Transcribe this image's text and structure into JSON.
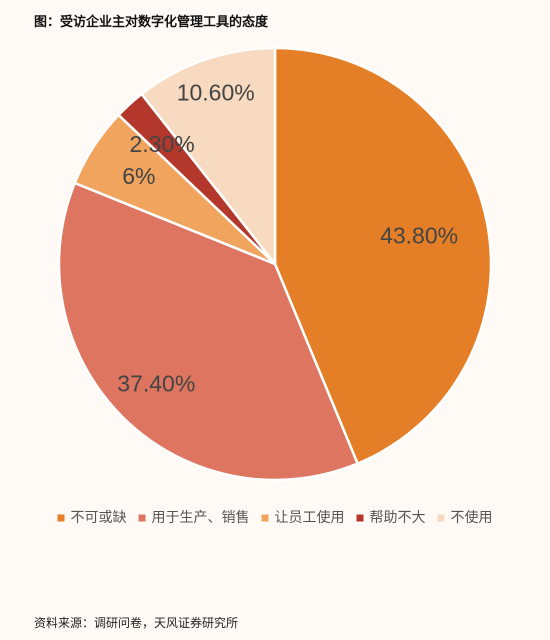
{
  "title": "图：受访企业主对数字化管理工具的态度",
  "source": "资料来源：调研问卷，天风证券研究所",
  "chart_data": {
    "type": "pie",
    "start": "12 o'clock",
    "direction": "clockwise",
    "legend_position": "bottom",
    "slices": [
      {
        "name": "不可或缺",
        "value": 43.8,
        "label": "43.80%",
        "color": "#e47f27"
      },
      {
        "name": "用于生产、销售",
        "value": 37.4,
        "label": "37.40%",
        "color": "#dd7560"
      },
      {
        "name": "让员工使用",
        "value": 6,
        "label": "6%",
        "color": "#f0a45d"
      },
      {
        "name": "帮助不大",
        "value": 2.3,
        "label": "2.30%",
        "color": "#b3372b"
      },
      {
        "name": "不使用",
        "value": 10.6,
        "label": "10.60%",
        "color": "#f8dac0"
      }
    ]
  }
}
